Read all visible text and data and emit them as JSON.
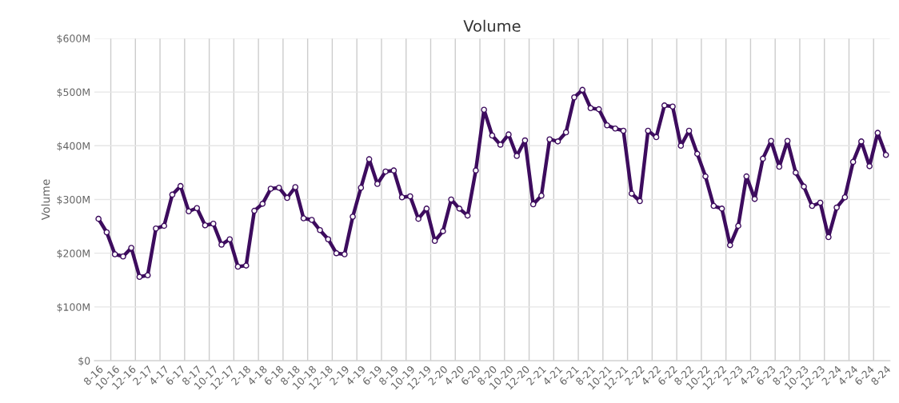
{
  "chart_data": {
    "type": "line",
    "title": "Volume",
    "ylabel": "Volume",
    "categories": [
      "8-16",
      null,
      "10-16",
      null,
      "12-16",
      null,
      "2-17",
      null,
      "4-17",
      null,
      "6-17",
      null,
      "8-17",
      null,
      "10-17",
      null,
      "12-17",
      null,
      "2-18",
      null,
      "4-18",
      null,
      "6-18",
      null,
      "8-18",
      null,
      "10-18",
      null,
      "12-18",
      null,
      "2-19",
      null,
      "4-19",
      null,
      "6-19",
      null,
      "8-19",
      null,
      "10-19",
      null,
      "12-19",
      null,
      "2-20",
      null,
      "4-20",
      null,
      "6-20",
      null,
      "8-20",
      null,
      "10-20",
      null,
      "12-20",
      null,
      "2-21",
      null,
      "4-21",
      null,
      "6-21",
      null,
      "8-21",
      null,
      "10-21",
      null,
      "12-21",
      null,
      "2-22",
      null,
      "4-22",
      null,
      "6-22",
      null,
      "8-22",
      null,
      "10-22",
      null,
      "12-22",
      null,
      "2-23",
      null,
      "4-23",
      null,
      "6-23",
      null,
      "8-23",
      null,
      "10-23",
      null,
      "12-23",
      null,
      "2-24",
      null,
      "4-24",
      null,
      "6-24",
      null,
      "8-24"
    ],
    "series": [
      {
        "color": "#3d0c5e",
        "values": [
          264,
          239,
          198,
          194,
          210,
          156,
          159,
          246,
          251,
          309,
          325,
          278,
          284,
          252,
          255,
          216,
          226,
          175,
          177,
          279,
          292,
          320,
          322,
          303,
          323,
          265,
          262,
          243,
          226,
          200,
          198,
          268,
          322,
          375,
          329,
          352,
          354,
          304,
          306,
          264,
          283,
          223,
          241,
          300,
          283,
          270,
          354,
          467,
          419,
          402,
          421,
          381,
          410,
          291,
          307,
          412,
          408,
          425,
          490,
          504,
          470,
          468,
          438,
          432,
          428,
          311,
          297,
          428,
          416,
          475,
          473,
          400,
          428,
          385,
          343,
          288,
          283,
          215,
          251,
          343,
          301,
          376,
          409,
          361,
          409,
          350,
          324,
          288,
          294,
          230,
          285,
          304,
          370,
          408,
          362,
          424,
          383
        ]
      }
    ],
    "ylim": [
      0,
      600
    ],
    "yticks": [
      {
        "value": 0,
        "label": "$0"
      },
      {
        "value": 100,
        "label": "$100M"
      },
      {
        "value": 200,
        "label": "$200M"
      },
      {
        "value": 300,
        "label": "$300M"
      },
      {
        "value": 400,
        "label": "$400M"
      },
      {
        "value": 500,
        "label": "$500M"
      },
      {
        "value": 600,
        "label": "$600M"
      }
    ],
    "grid": true,
    "marker": "circle",
    "line_style": "solid"
  }
}
